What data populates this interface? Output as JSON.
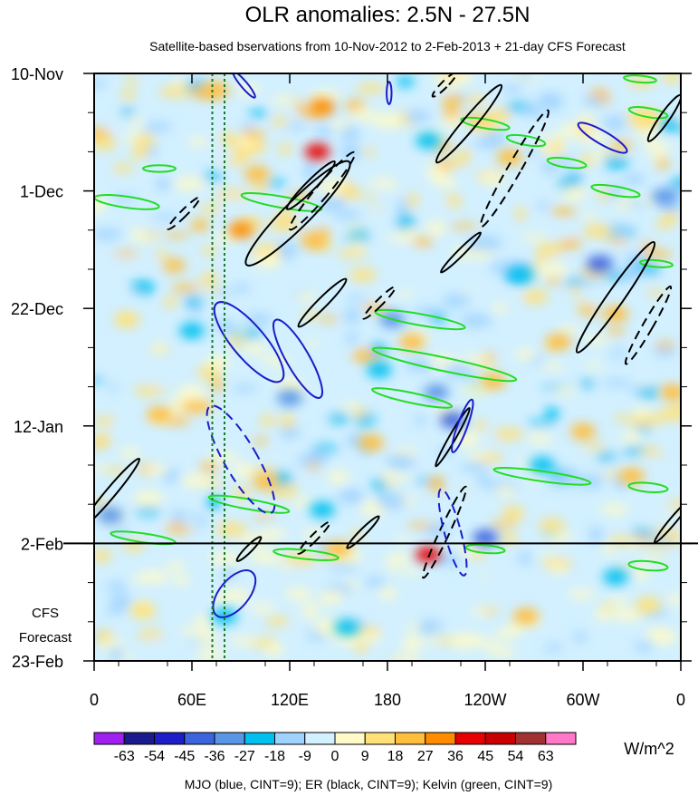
{
  "chart_data": {
    "type": "heatmap",
    "title": "OLR anomalies: 2.5N - 27.5N",
    "subtitle": "Satellite-based bservations from 10-Nov-2012 to 2-Feb-2013 + 21-day CFS Forecast",
    "x_ticks": [
      "0",
      "60E",
      "120E",
      "180",
      "120W",
      "60W",
      "0"
    ],
    "x_values": [
      0,
      60,
      120,
      180,
      240,
      300,
      360
    ],
    "xlim": [
      0,
      360
    ],
    "y_ticks": [
      "10-Nov",
      "1-Dec",
      "22-Dec",
      "12-Jan",
      "2-Feb",
      "23-Feb"
    ],
    "y_days": [
      0,
      21,
      42,
      63,
      84,
      105
    ],
    "ylim": [
      0,
      105
    ],
    "observation_end_day": 84,
    "forecast_label": [
      "CFS",
      "Forecast"
    ],
    "reference_lon": [
      72.5,
      80
    ],
    "colorbar": {
      "units": "W/m^2",
      "levels": [
        -63,
        -54,
        -45,
        -36,
        -27,
        -18,
        -9,
        0,
        9,
        18,
        27,
        36,
        45,
        54,
        63
      ],
      "labels": [
        "-63",
        "-54",
        "-45",
        "-36",
        "-27",
        "-18",
        "-9",
        "0",
        "9",
        "18",
        "27",
        "36",
        "45",
        "54",
        "63"
      ],
      "colors": [
        "#a020f0",
        "#1a1a8c",
        "#1e1ec8",
        "#3c64dc",
        "#5a96e6",
        "#00c0f0",
        "#a0d2ff",
        "#d2f0ff",
        "#fffac8",
        "#ffe178",
        "#ffbe3c",
        "#ff8c00",
        "#e60000",
        "#c80000",
        "#a03232",
        "#ff78c8"
      ]
    },
    "footnote": "MJO (blue, CINT=9); ER (black, CINT=9); Kelvin (green, CINT=9)",
    "contour_colors": {
      "MJO": "#1c1cc8",
      "ER": "#000000",
      "Kelvin": "#22dd22",
      "reference": "#1a7a2a"
    },
    "anomaly_features": [
      {
        "lon": 140,
        "day": 6,
        "value": 30
      },
      {
        "lon": 137,
        "day": 14,
        "value": 38
      },
      {
        "lon": 75,
        "day": 3,
        "value": 18
      },
      {
        "lon": 90,
        "day": 28,
        "value": 27
      },
      {
        "lon": 135,
        "day": 30,
        "value": 20
      },
      {
        "lon": 205,
        "day": 12,
        "value": -25
      },
      {
        "lon": 255,
        "day": 15,
        "value": 18
      },
      {
        "lon": 350,
        "day": 22,
        "value": -30
      },
      {
        "lon": 310,
        "day": 34,
        "value": -45
      },
      {
        "lon": 262,
        "day": 36,
        "value": -27
      },
      {
        "lon": 320,
        "day": 43,
        "value": 20
      },
      {
        "lon": 195,
        "day": 48,
        "value": 25
      },
      {
        "lon": 245,
        "day": 55,
        "value": 18
      },
      {
        "lon": 175,
        "day": 53,
        "value": -20
      },
      {
        "lon": 183,
        "day": 44,
        "value": -36
      },
      {
        "lon": 120,
        "day": 58,
        "value": -30
      },
      {
        "lon": 210,
        "day": 57,
        "value": -36
      },
      {
        "lon": 220,
        "day": 62,
        "value": -45
      },
      {
        "lon": 300,
        "day": 64,
        "value": 18
      },
      {
        "lon": 330,
        "day": 72,
        "value": 22
      },
      {
        "lon": 275,
        "day": 70,
        "value": -27
      },
      {
        "lon": 40,
        "day": 61,
        "value": 18
      },
      {
        "lon": 60,
        "day": 46,
        "value": -27
      },
      {
        "lon": 10,
        "day": 79,
        "value": -36
      },
      {
        "lon": 105,
        "day": 73,
        "value": 22
      },
      {
        "lon": 140,
        "day": 78,
        "value": -20
      },
      {
        "lon": 240,
        "day": 83,
        "value": -45
      },
      {
        "lon": 205,
        "day": 86,
        "value": 36
      },
      {
        "lon": 150,
        "day": 85,
        "value": 20
      },
      {
        "lon": 155,
        "day": 99,
        "value": -27
      },
      {
        "lon": 265,
        "day": 97,
        "value": 18
      },
      {
        "lon": 340,
        "day": 95,
        "value": 15
      },
      {
        "lon": 320,
        "day": 90,
        "value": -27
      },
      {
        "lon": 30,
        "day": 96,
        "value": 10
      },
      {
        "lon": 80,
        "day": 97,
        "value": -20
      },
      {
        "lon": 355,
        "day": 57,
        "value": 20
      },
      {
        "lon": 20,
        "day": 44,
        "value": 12
      },
      {
        "lon": 280,
        "day": 5,
        "value": -18
      },
      {
        "lon": 340,
        "day": 8,
        "value": 15
      },
      {
        "lon": 100,
        "day": 18,
        "value": 22
      },
      {
        "lon": 170,
        "day": 66,
        "value": 18
      },
      {
        "lon": 285,
        "day": 48,
        "value": 18
      }
    ],
    "mjo_contours": [
      {
        "lon": 312,
        "day": 11.5,
        "rx_deg": 4,
        "ry_day": 5,
        "angle_deg": -60,
        "dashed": false
      },
      {
        "lon": 92,
        "day": 2,
        "rx_deg": 2,
        "ry_day": 3,
        "angle_deg": -40,
        "dashed": false
      },
      {
        "lon": 181,
        "day": 3.5,
        "rx_deg": 1.5,
        "ry_day": 2,
        "angle_deg": 0,
        "dashed": false
      },
      {
        "lon": 95,
        "day": 48,
        "rx_deg": 10,
        "ry_day": 9,
        "angle_deg": -40,
        "dashed": false
      },
      {
        "lon": 125,
        "day": 51,
        "rx_deg": 7,
        "ry_day": 8,
        "angle_deg": -30,
        "dashed": false
      },
      {
        "lon": 90,
        "day": 69,
        "rx_deg": 10,
        "ry_day": 11,
        "angle_deg": -30,
        "dashed": true
      },
      {
        "lon": 220,
        "day": 82,
        "rx_deg": 5,
        "ry_day": 8,
        "angle_deg": -15,
        "dashed": true
      },
      {
        "lon": 86,
        "day": 93,
        "rx_deg": 9,
        "ry_day": 5,
        "angle_deg": 40,
        "dashed": false
      },
      {
        "lon": 226,
        "day": 63,
        "rx_deg": 3,
        "ry_day": 5,
        "angle_deg": 20,
        "dashed": false
      }
    ],
    "er_contours": [
      {
        "lon": 125,
        "day": 25,
        "rx_deg": 8,
        "ry_day": 13,
        "angle_deg": 45,
        "dashed": false
      },
      {
        "lon": 140,
        "day": 21,
        "rx_deg": 4,
        "ry_day": 9,
        "angle_deg": 40,
        "dashed": true
      },
      {
        "lon": 133,
        "day": 20,
        "rx_deg": 3,
        "ry_day": 6,
        "angle_deg": 45,
        "dashed": false
      },
      {
        "lon": 55,
        "day": 25,
        "rx_deg": 2,
        "ry_day": 4,
        "angle_deg": 45,
        "dashed": true
      },
      {
        "lon": 230,
        "day": 9,
        "rx_deg": 4,
        "ry_day": 9,
        "angle_deg": 40,
        "dashed": false
      },
      {
        "lon": 258,
        "day": 17,
        "rx_deg": 4,
        "ry_day": 12,
        "angle_deg": 30,
        "dashed": true
      },
      {
        "lon": 215,
        "day": 2,
        "rx_deg": 2,
        "ry_day": 3,
        "angle_deg": 45,
        "dashed": true
      },
      {
        "lon": 350,
        "day": 8,
        "rx_deg": 3,
        "ry_day": 5,
        "angle_deg": 35,
        "dashed": false
      },
      {
        "lon": 320,
        "day": 40,
        "rx_deg": 5,
        "ry_day": 12,
        "angle_deg": 35,
        "dashed": false
      },
      {
        "lon": 340,
        "day": 45,
        "rx_deg": 3,
        "ry_day": 8,
        "angle_deg": 30,
        "dashed": true
      },
      {
        "lon": 225,
        "day": 32,
        "rx_deg": 2,
        "ry_day": 5,
        "angle_deg": 45,
        "dashed": false
      },
      {
        "lon": 175,
        "day": 41,
        "rx_deg": 2,
        "ry_day": 4,
        "angle_deg": 45,
        "dashed": true
      },
      {
        "lon": 140,
        "day": 41,
        "rx_deg": 3,
        "ry_day": 6,
        "angle_deg": 45,
        "dashed": false
      },
      {
        "lon": 215,
        "day": 82,
        "rx_deg": 3,
        "ry_day": 9,
        "angle_deg": 25,
        "dashed": true
      },
      {
        "lon": 220,
        "day": 65,
        "rx_deg": 2,
        "ry_day": 6,
        "angle_deg": 30,
        "dashed": false
      },
      {
        "lon": 10,
        "day": 75,
        "rx_deg": 3,
        "ry_day": 8,
        "angle_deg": 40,
        "dashed": false
      },
      {
        "lon": 165,
        "day": 82,
        "rx_deg": 2,
        "ry_day": 4,
        "angle_deg": 45,
        "dashed": false
      },
      {
        "lon": 135,
        "day": 83,
        "rx_deg": 2,
        "ry_day": 4,
        "angle_deg": 45,
        "dashed": true
      },
      {
        "lon": 355,
        "day": 80,
        "rx_deg": 2,
        "ry_day": 5,
        "angle_deg": 40,
        "dashed": false
      },
      {
        "lon": 95,
        "day": 85,
        "rx_deg": 2,
        "ry_day": 3,
        "angle_deg": 45,
        "dashed": false
      }
    ],
    "kelvin_contours": [
      {
        "lon": 20,
        "day": 23,
        "rx_deg": 20,
        "ry_day": 1,
        "angle_deg": 8
      },
      {
        "lon": 115,
        "day": 23,
        "rx_deg": 25,
        "ry_day": 1,
        "angle_deg": 10
      },
      {
        "lon": 40,
        "day": 17,
        "rx_deg": 10,
        "ry_day": 0.6,
        "angle_deg": 0
      },
      {
        "lon": 240,
        "day": 9,
        "rx_deg": 15,
        "ry_day": 0.8,
        "angle_deg": 10
      },
      {
        "lon": 265,
        "day": 12,
        "rx_deg": 12,
        "ry_day": 0.8,
        "angle_deg": 10
      },
      {
        "lon": 290,
        "day": 16,
        "rx_deg": 12,
        "ry_day": 0.8,
        "angle_deg": 8
      },
      {
        "lon": 320,
        "day": 21,
        "rx_deg": 15,
        "ry_day": 0.8,
        "angle_deg": 10
      },
      {
        "lon": 340,
        "day": 7,
        "rx_deg": 12,
        "ry_day": 0.8,
        "angle_deg": 10
      },
      {
        "lon": 335,
        "day": 1,
        "rx_deg": 10,
        "ry_day": 0.6,
        "angle_deg": 5
      },
      {
        "lon": 200,
        "day": 44,
        "rx_deg": 28,
        "ry_day": 1,
        "angle_deg": 10
      },
      {
        "lon": 215,
        "day": 52,
        "rx_deg": 45,
        "ry_day": 1.2,
        "angle_deg": 12
      },
      {
        "lon": 195,
        "day": 58,
        "rx_deg": 25,
        "ry_day": 0.9,
        "angle_deg": 12
      },
      {
        "lon": 275,
        "day": 72,
        "rx_deg": 30,
        "ry_day": 0.9,
        "angle_deg": 8
      },
      {
        "lon": 340,
        "day": 74,
        "rx_deg": 12,
        "ry_day": 0.8,
        "angle_deg": 5
      },
      {
        "lon": 95,
        "day": 77,
        "rx_deg": 25,
        "ry_day": 0.9,
        "angle_deg": 10
      },
      {
        "lon": 130,
        "day": 86,
        "rx_deg": 20,
        "ry_day": 0.8,
        "angle_deg": 6
      },
      {
        "lon": 340,
        "day": 88,
        "rx_deg": 12,
        "ry_day": 0.8,
        "angle_deg": 5
      },
      {
        "lon": 345,
        "day": 34,
        "rx_deg": 10,
        "ry_day": 0.6,
        "angle_deg": 5
      },
      {
        "lon": 30,
        "day": 83,
        "rx_deg": 20,
        "ry_day": 0.8,
        "angle_deg": 8
      },
      {
        "lon": 240,
        "day": 85,
        "rx_deg": 12,
        "ry_day": 0.7,
        "angle_deg": 5
      }
    ]
  }
}
